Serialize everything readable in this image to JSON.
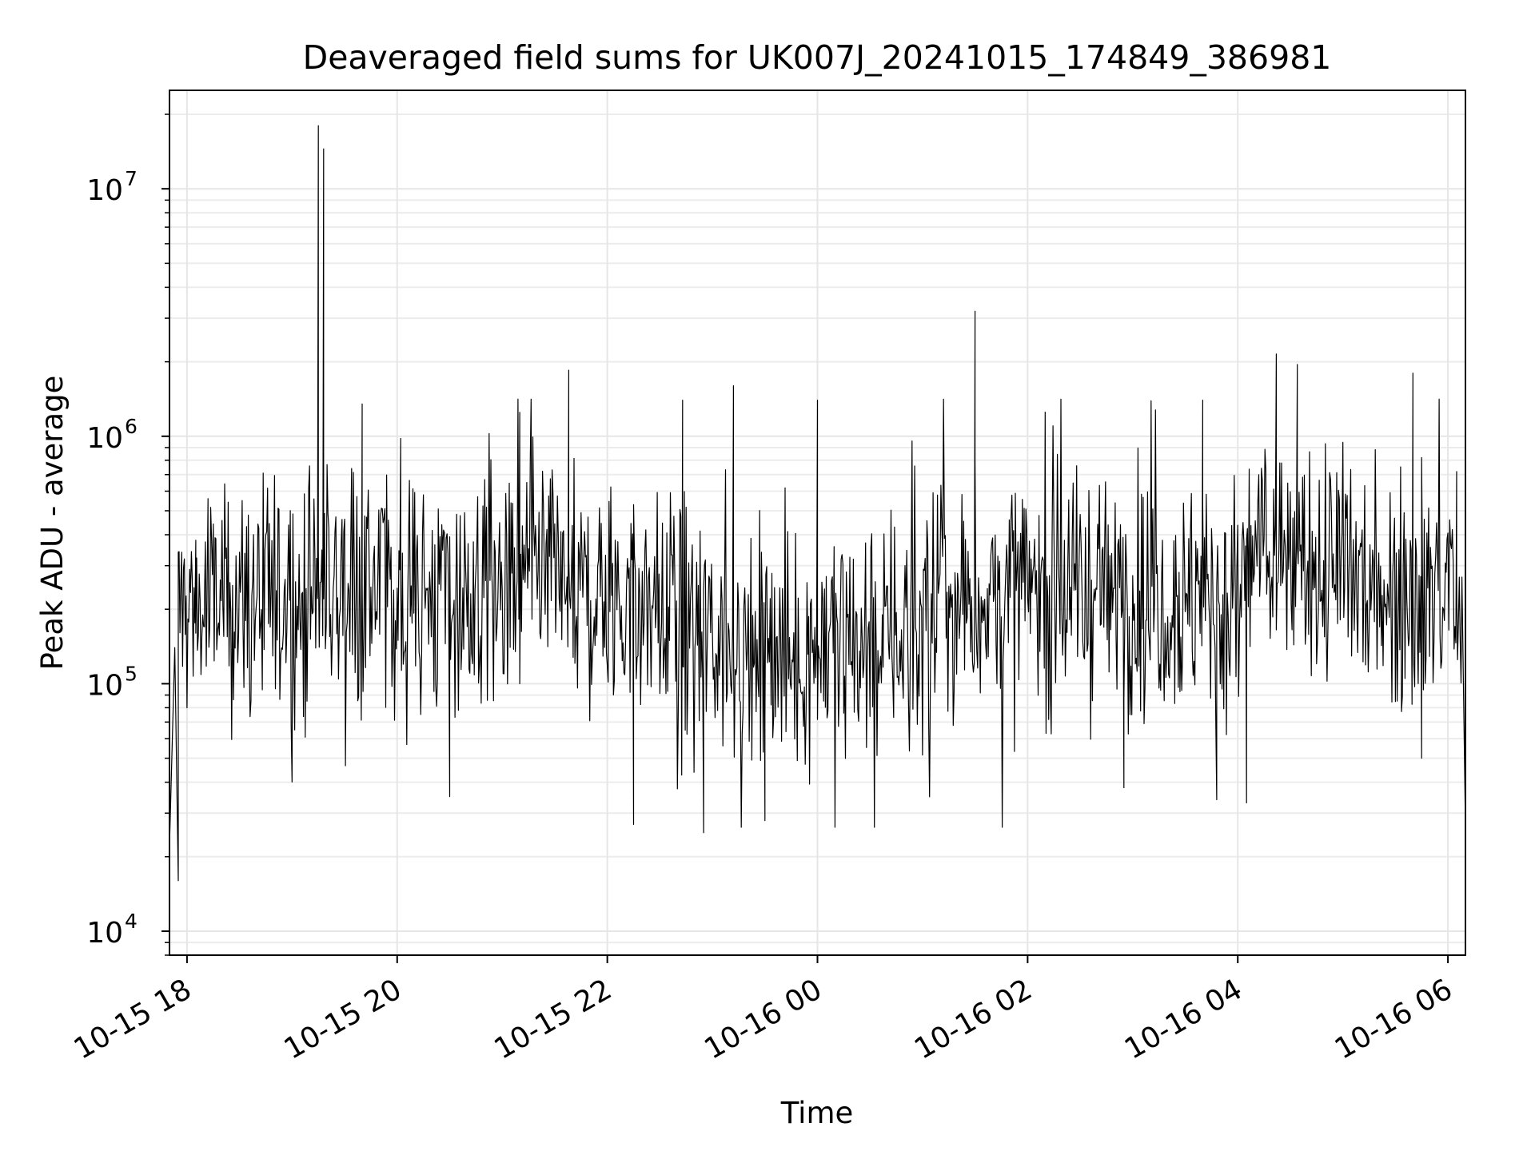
{
  "chart_data": {
    "type": "line",
    "title": "Deaveraged field sums for UK007J_20241015_174849_386981",
    "xlabel": "Time",
    "ylabel": "Peak ADU - average",
    "yscale": "log",
    "ylim": [
      8000,
      25000000
    ],
    "xlim": [
      "2024-10-15 17:50",
      "2024-10-16 06:10"
    ],
    "grid": true,
    "x_ticks": [
      "10-15 18",
      "10-15 20",
      "10-15 22",
      "10-16 00",
      "10-16 02",
      "10-16 04",
      "10-16 06"
    ],
    "y_ticks": [
      {
        "value": 10000,
        "base": "10",
        "exp": "4"
      },
      {
        "value": 100000,
        "base": "10",
        "exp": "5"
      },
      {
        "value": 1000000,
        "base": "10",
        "exp": "6"
      },
      {
        "value": 10000000,
        "base": "10",
        "exp": "7"
      }
    ],
    "series": [
      {
        "color": "#000000",
        "sampling": "approximately one point per 30 s, noisy around 1e5–6e5",
        "points": [
          [
            "2024-10-15 17:50",
            22000
          ],
          [
            "2024-10-15 17:53",
            140000
          ],
          [
            "2024-10-15 17:55",
            16000
          ],
          [
            "2024-10-15 17:57",
            340000
          ],
          [
            "2024-10-15 18:05",
            380000
          ],
          [
            "2024-10-15 18:10",
            170000
          ],
          [
            "2024-10-15 18:12",
            560000
          ],
          [
            "2024-10-15 19:15",
            18000000
          ],
          [
            "2024-10-15 19:18",
            14500000
          ],
          [
            "2024-10-15 19:40",
            1350000
          ],
          [
            "2024-10-15 20:02",
            980000
          ],
          [
            "2024-10-15 20:30",
            35000
          ],
          [
            "2024-10-15 21:10",
            1250000
          ],
          [
            "2024-10-15 21:38",
            1850000
          ],
          [
            "2024-10-15 22:15",
            27000
          ],
          [
            "2024-10-15 22:43",
            1400000
          ],
          [
            "2024-10-15 22:55",
            25000
          ],
          [
            "2024-10-15 23:12",
            1600000
          ],
          [
            "2024-10-15 23:30",
            28000
          ],
          [
            "2024-10-16 00:00",
            1400000
          ],
          [
            "2024-10-16 00:10",
            27500
          ],
          [
            "2024-10-16 01:30",
            3200000
          ],
          [
            "2024-10-16 02:55",
            38000
          ],
          [
            "2024-10-16 03:40",
            1400000
          ],
          [
            "2024-10-16 03:48",
            34000
          ],
          [
            "2024-10-16 04:05",
            33000
          ],
          [
            "2024-10-16 04:22",
            2150000
          ],
          [
            "2024-10-16 04:34",
            1950000
          ],
          [
            "2024-10-16 05:40",
            1800000
          ],
          [
            "2024-10-16 05:45",
            50000
          ],
          [
            "2024-10-16 06:05",
            720000
          ],
          [
            "2024-10-16 06:10",
            26000
          ]
        ]
      }
    ]
  }
}
